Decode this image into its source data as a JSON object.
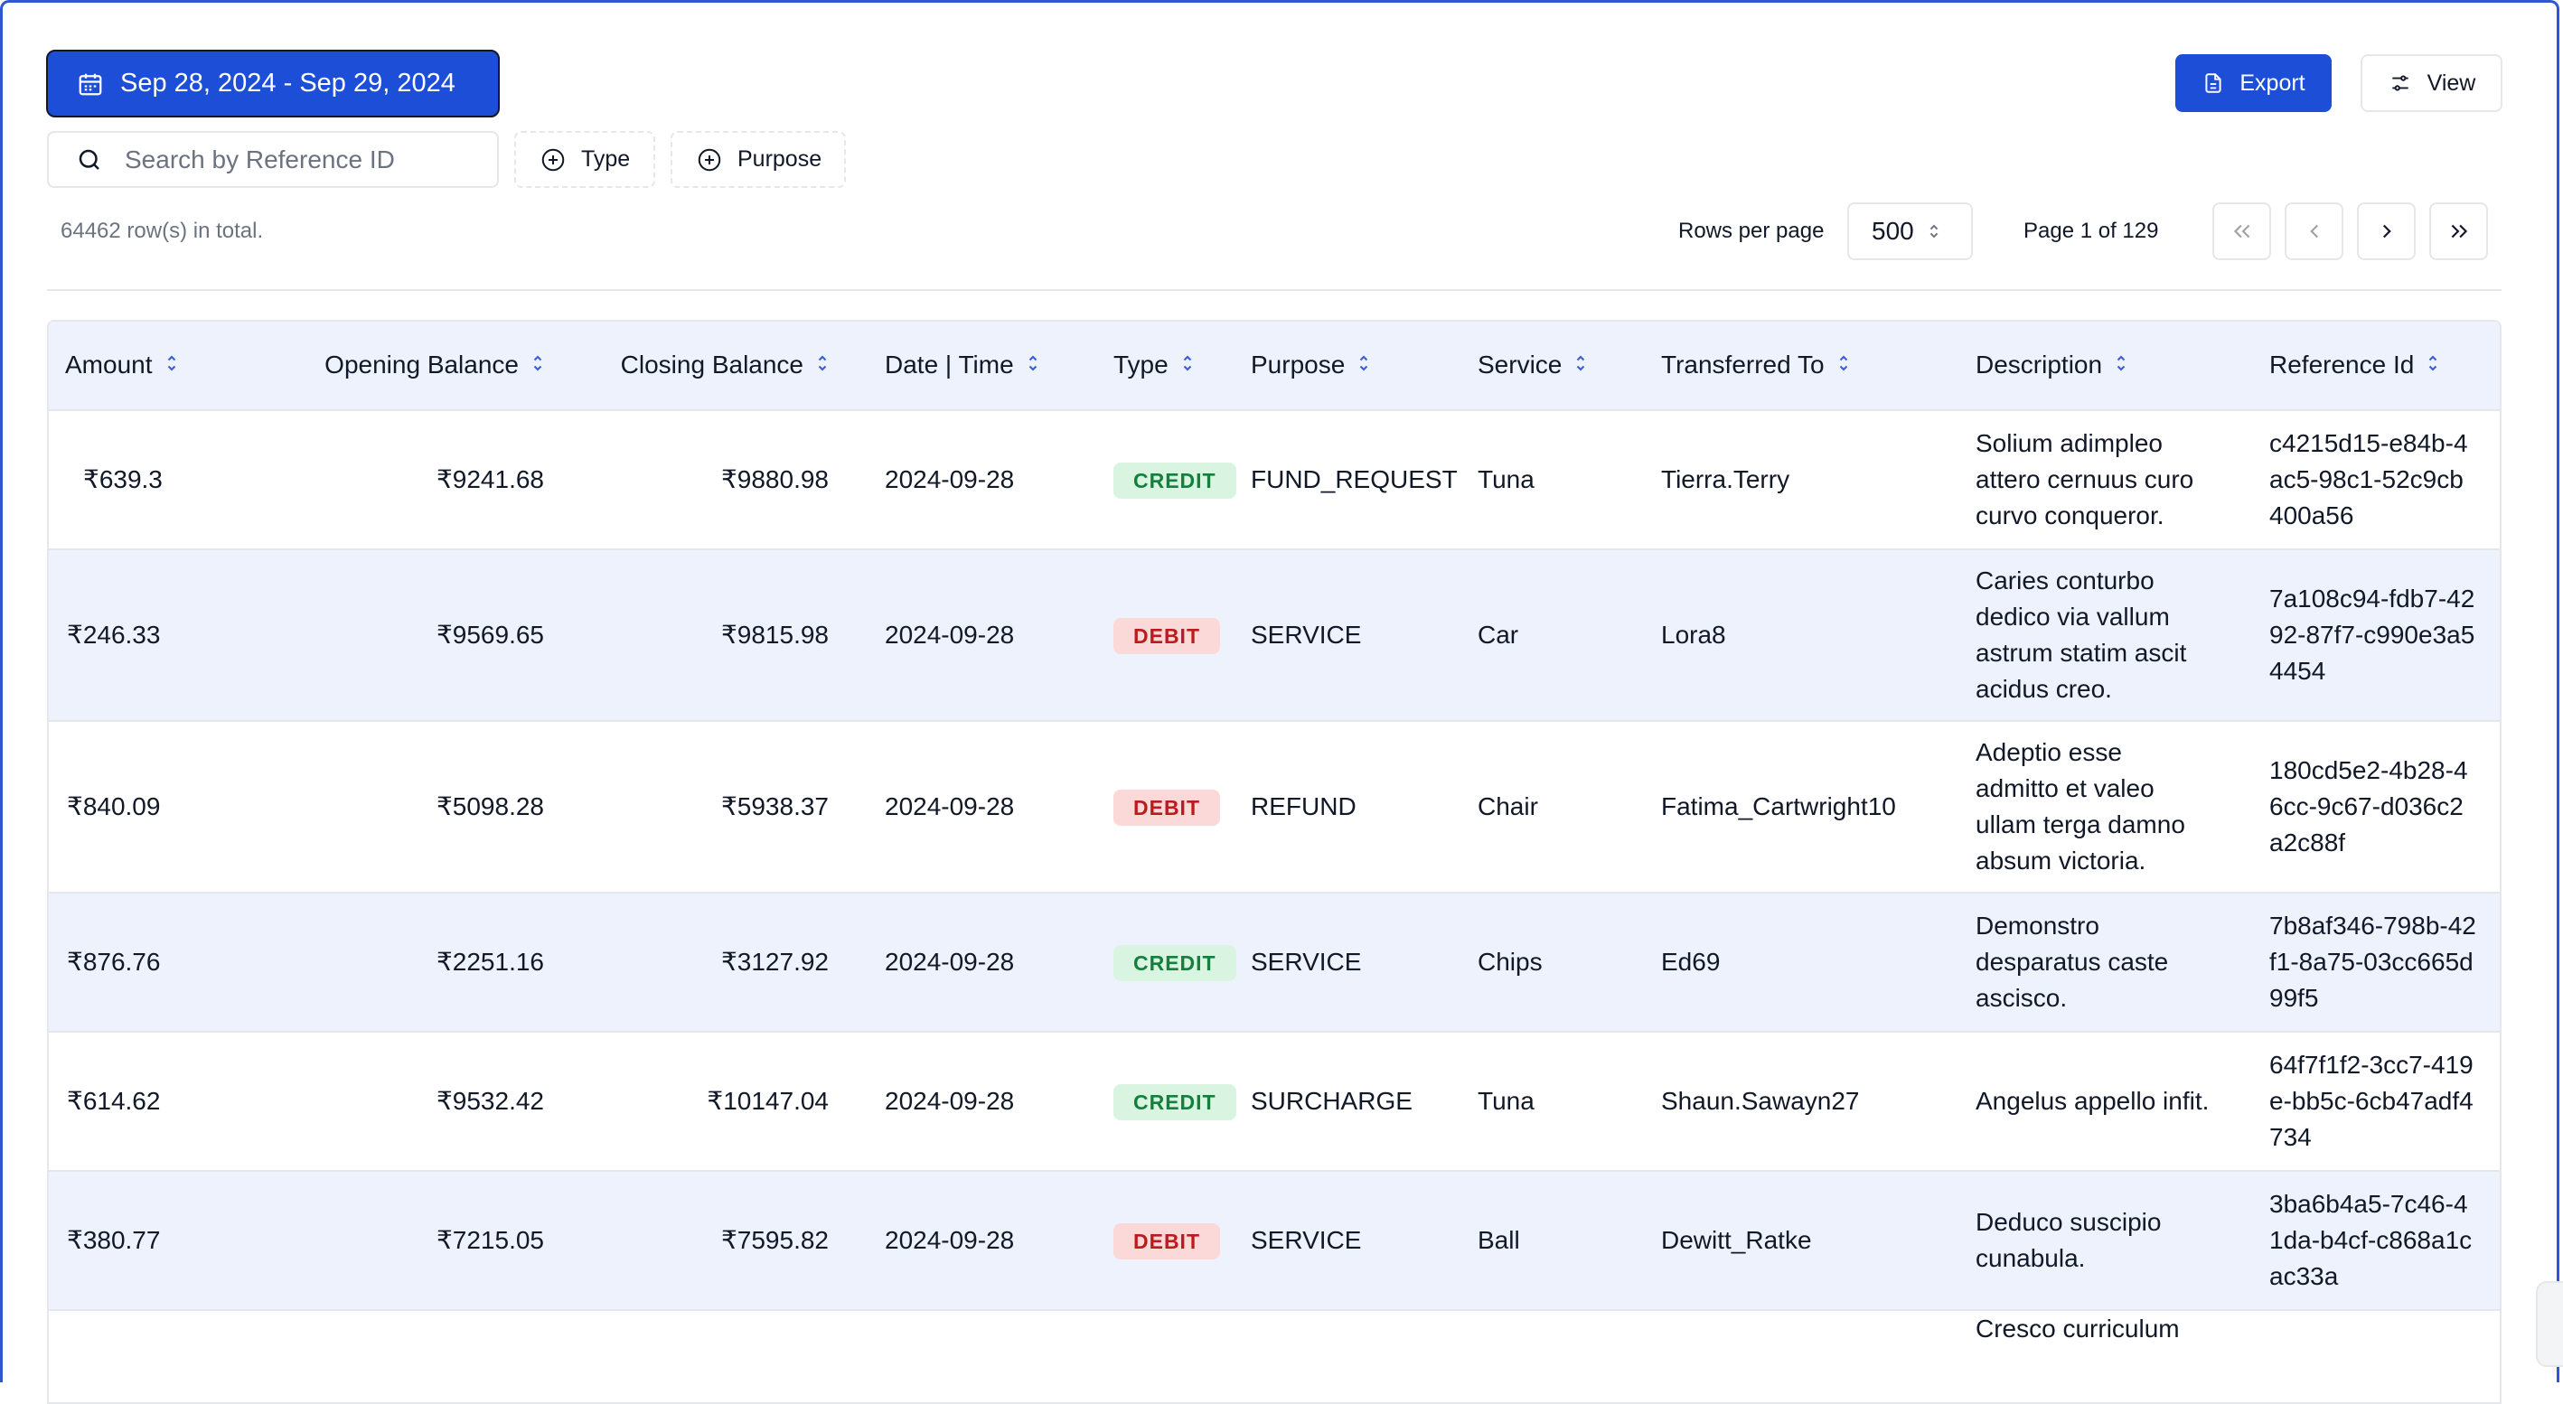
{
  "toolbar": {
    "date_range": "Sep 28, 2024 - Sep 29, 2024",
    "export_label": "Export",
    "view_label": "View",
    "search_placeholder": "Search by Reference ID",
    "filter_type_label": "Type",
    "filter_purpose_label": "Purpose"
  },
  "summary": {
    "rows_total": "64462 row(s) in total.",
    "rows_per_page_label": "Rows per page",
    "rows_per_page_value": "500",
    "page_info": "Page 1 of 129"
  },
  "colors": {
    "accent": "#1d4ed8",
    "credit_bg": "#d9f5e1",
    "debit_bg": "#fcd9d9"
  },
  "table": {
    "columns": [
      "Amount",
      "Opening Balance",
      "Closing Balance",
      "Date | Time",
      "Type",
      "Purpose",
      "Service",
      "Transferred To",
      "Description",
      "Reference Id"
    ],
    "rows": [
      {
        "amount": "₹639.3",
        "opening": "₹9241.68",
        "closing": "₹9880.98",
        "date": "2024-09-28",
        "type": "CREDIT",
        "purpose": "FUND_REQUEST",
        "service": "Tuna",
        "to": "Tierra.Terry",
        "description": "Solium adimpleo attero cernuus curo curvo conqueror.",
        "ref": "c4215d15-e84b-4ac5-98c1-52c9cb400a56"
      },
      {
        "amount": "₹246.33",
        "opening": "₹9569.65",
        "closing": "₹9815.98",
        "date": "2024-09-28",
        "type": "DEBIT",
        "purpose": "SERVICE",
        "service": "Car",
        "to": "Lora8",
        "description": "Caries conturbo dedico via vallum astrum statim ascit acidus creo.",
        "ref": "7a108c94-fdb7-4292-87f7-c990e3a54454"
      },
      {
        "amount": "₹840.09",
        "opening": "₹5098.28",
        "closing": "₹5938.37",
        "date": "2024-09-28",
        "type": "DEBIT",
        "purpose": "REFUND",
        "service": "Chair",
        "to": "Fatima_Cartwright10",
        "description": "Adeptio esse admitto et valeo ullam terga damno absum victoria.",
        "ref": "180cd5e2-4b28-46cc-9c67-d036c2a2c88f"
      },
      {
        "amount": "₹876.76",
        "opening": "₹2251.16",
        "closing": "₹3127.92",
        "date": "2024-09-28",
        "type": "CREDIT",
        "purpose": "SERVICE",
        "service": "Chips",
        "to": "Ed69",
        "description": "Demonstro desparatus caste ascisco.",
        "ref": "7b8af346-798b-42f1-8a75-03cc665d99f5"
      },
      {
        "amount": "₹614.62",
        "opening": "₹9532.42",
        "closing": "₹10147.04",
        "date": "2024-09-28",
        "type": "CREDIT",
        "purpose": "SURCHARGE",
        "service": "Tuna",
        "to": "Shaun.Sawayn27",
        "description": "Angelus appello infit.",
        "ref": "64f7f1f2-3cc7-419e-bb5c-6cb47adf4734"
      },
      {
        "amount": "₹380.77",
        "opening": "₹7215.05",
        "closing": "₹7595.82",
        "date": "2024-09-28",
        "type": "DEBIT",
        "purpose": "SERVICE",
        "service": "Ball",
        "to": "Dewitt_Ratke",
        "description": "Deduco suscipio cunabula.",
        "ref": "3ba6b4a5-7c46-41da-b4cf-c868a1cac33a"
      },
      {
        "amount": "",
        "opening": "",
        "closing": "",
        "date": "",
        "type": "",
        "purpose": "",
        "service": "",
        "to": "",
        "description": "Cresco curriculum",
        "ref": ""
      }
    ]
  }
}
